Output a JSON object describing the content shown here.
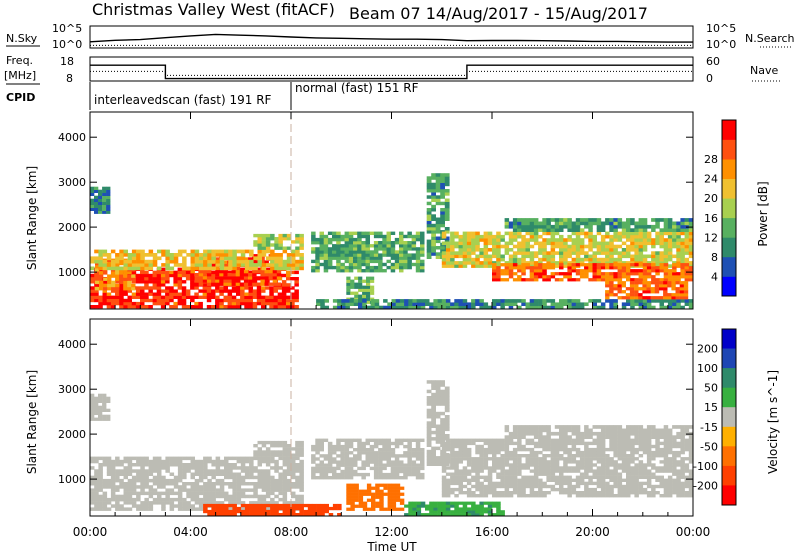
{
  "header": {
    "title_left": "Christmas Valley West (fitACF)",
    "title_right": "Beam 07  14/Aug/2017 - 15/Aug/2017"
  },
  "noise_panel": {
    "left_label": "N.Sky",
    "right_label": "N.Search",
    "left_ticks": [
      "10^5",
      "10^0"
    ],
    "right_ticks": [
      "10^5",
      "10^0"
    ]
  },
  "freq_panel": {
    "left_label_1": "Freq.",
    "left_label_2": "[MHz]",
    "right_label": "Nave",
    "left_ticks": [
      "18",
      "8"
    ],
    "right_ticks": [
      "60",
      "0"
    ]
  },
  "cpid_panel": {
    "label": "CPID",
    "segments": [
      {
        "text": "interleavedscan (fast) 191 RF",
        "start_hour": 0,
        "end_hour": 8.0
      },
      {
        "text": "normal (fast) 151 RF",
        "start_hour": 8.0,
        "end_hour": 24
      }
    ]
  },
  "colors": {
    "power_scale": [
      "#0000ff",
      "#1e50b4",
      "#2f8a6a",
      "#58b060",
      "#a8d050",
      "#f0c030",
      "#ff9000",
      "#ff5010",
      "#ff0000"
    ],
    "velocity_scale": [
      "#0000c8",
      "#1e46b4",
      "#2f8a6a",
      "#38b040",
      "#bcbcb4",
      "#ffb000",
      "#ff7000",
      "#ff4000",
      "#ff0000"
    ]
  },
  "chart_data": [
    {
      "type": "line",
      "name": "noise",
      "x_unit": "hours UT",
      "series": [
        {
          "name": "N.Sky",
          "x": [
            0,
            1,
            2,
            3,
            4,
            5,
            6,
            7,
            8,
            9,
            10,
            11,
            12,
            13,
            14,
            15,
            16,
            17,
            18,
            19,
            20,
            21,
            22,
            23,
            24
          ],
          "y": [
            0.28,
            0.35,
            0.38,
            0.47,
            0.55,
            0.62,
            0.58,
            0.55,
            0.5,
            0.46,
            0.44,
            0.42,
            0.4,
            0.4,
            0.38,
            0.33,
            0.34,
            0.34,
            0.33,
            0.32,
            0.3,
            0.3,
            0.28,
            0.27,
            0.27
          ]
        },
        {
          "name": "N.Search",
          "x": [
            0,
            24
          ],
          "y": [
            0.12,
            0.12
          ]
        }
      ]
    },
    {
      "type": "line",
      "name": "frequency / nave",
      "x_unit": "hours UT",
      "series": [
        {
          "name": "Freq.",
          "x": [
            0,
            3.0,
            3.0,
            15.0,
            15.0,
            24
          ],
          "y": [
            14.6,
            14.6,
            9.0,
            9.0,
            14.6,
            14.6
          ]
        },
        {
          "name": "Nave",
          "x": [
            0,
            3.0,
            3.0,
            15.0,
            15.0,
            24
          ],
          "y": [
            24,
            24,
            14,
            14,
            24,
            24
          ]
        }
      ]
    },
    {
      "type": "heatmap",
      "name": "power",
      "ylabel": "Slant Range [km]",
      "xlabel": "Time UT",
      "xlim": [
        0,
        24
      ],
      "ylim": [
        180,
        4560
      ],
      "x_ticks": [
        "00:00",
        "04:00",
        "08:00",
        "12:00",
        "16:00",
        "20:00",
        "00:00"
      ],
      "y_ticks": [
        1000,
        2000,
        3000,
        4000
      ],
      "colorbar_label": "Power [dB]",
      "colorbar_ticks": [
        4,
        8,
        12,
        16,
        20,
        24,
        28
      ],
      "colorbar_range": [
        0,
        30
      ],
      "regions": [
        {
          "t0": 0.0,
          "t1": 8.3,
          "r0": 200,
          "r1": 1100,
          "value": 27
        },
        {
          "t0": 0.2,
          "t1": 1.8,
          "r0": 600,
          "r1": 1300,
          "value": 22
        },
        {
          "t0": 4.0,
          "t1": 7.6,
          "r0": 700,
          "r1": 1400,
          "value": 26
        },
        {
          "t0": 0.0,
          "t1": 8.5,
          "r0": 1050,
          "r1": 1500,
          "value": 18
        },
        {
          "t0": 6.5,
          "t1": 8.5,
          "r0": 1500,
          "r1": 1850,
          "value": 15
        },
        {
          "t0": 8.8,
          "t1": 13.3,
          "r0": 1000,
          "r1": 1900,
          "value": 11
        },
        {
          "t0": 10.2,
          "t1": 11.3,
          "r0": 300,
          "r1": 900,
          "value": 12
        },
        {
          "t0": 13.4,
          "t1": 14.3,
          "r0": 1300,
          "r1": 3200,
          "value": 10
        },
        {
          "t0": 14.0,
          "t1": 24.0,
          "r0": 1100,
          "r1": 1900,
          "value": 17
        },
        {
          "t0": 16.0,
          "t1": 24.0,
          "r0": 800,
          "r1": 1200,
          "value": 24
        },
        {
          "t0": 16.5,
          "t1": 24.0,
          "r0": 1900,
          "r1": 2200,
          "value": 10
        },
        {
          "t0": 9.0,
          "t1": 24.0,
          "r0": 180,
          "r1": 400,
          "value": 9
        },
        {
          "t0": 0.0,
          "t1": 0.8,
          "r0": 2300,
          "r1": 2900,
          "value": 8
        },
        {
          "t0": 20.5,
          "t1": 23.8,
          "r0": 400,
          "r1": 800,
          "value": 24
        }
      ]
    },
    {
      "type": "heatmap",
      "name": "velocity",
      "ylabel": "Slant Range [km]",
      "xlabel": "Time UT",
      "xlim": [
        0,
        24
      ],
      "ylim": [
        180,
        4560
      ],
      "x_ticks": [
        "00:00",
        "04:00",
        "08:00",
        "12:00",
        "16:00",
        "20:00",
        "00:00"
      ],
      "y_ticks": [
        1000,
        2000,
        3000,
        4000
      ],
      "colorbar_label": "Velocity [m s^-1]",
      "colorbar_ticks": [
        200,
        100,
        50,
        15,
        -15,
        -50,
        -100,
        -200
      ],
      "regions": [
        {
          "t0": 0.0,
          "t1": 8.5,
          "r0": 300,
          "r1": 1500,
          "value": 0
        },
        {
          "t0": 6.5,
          "t1": 8.5,
          "r0": 1500,
          "r1": 1850,
          "value": 0
        },
        {
          "t0": 8.8,
          "t1": 13.3,
          "r0": 1000,
          "r1": 1900,
          "value": 0
        },
        {
          "t0": 10.2,
          "t1": 12.5,
          "r0": 300,
          "r1": 900,
          "value": -60
        },
        {
          "t0": 4.5,
          "t1": 10.0,
          "r0": 180,
          "r1": 450,
          "value": -80
        },
        {
          "t0": 13.4,
          "t1": 14.3,
          "r0": 1300,
          "r1": 3200,
          "value": 10
        },
        {
          "t0": 14.0,
          "t1": 24.0,
          "r0": 600,
          "r1": 1900,
          "value": 0
        },
        {
          "t0": 12.5,
          "t1": 16.5,
          "r0": 180,
          "r1": 500,
          "value": 30
        },
        {
          "t0": 0.0,
          "t1": 0.8,
          "r0": 2300,
          "r1": 2900,
          "value": 0
        },
        {
          "t0": 16.5,
          "t1": 24.0,
          "r0": 1900,
          "r1": 2200,
          "value": 0
        }
      ]
    }
  ]
}
